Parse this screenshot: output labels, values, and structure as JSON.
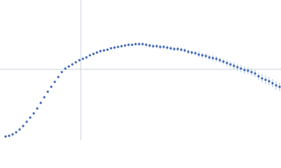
{
  "chart_data": {
    "type": "scatter",
    "xlim": [
      0,
      400
    ],
    "ylim": [
      0,
      200
    ],
    "vlines": [
      115
    ],
    "hlines": [
      101
    ],
    "line_color": "#c8d0dc",
    "error_color": "#a9bfe6",
    "x": [
      8,
      13,
      18,
      23,
      28,
      33,
      38,
      43,
      48,
      53,
      58,
      63,
      68,
      73,
      78,
      83,
      88,
      93,
      98,
      103,
      108,
      113,
      118,
      123,
      128,
      133,
      138,
      143,
      148,
      153,
      158,
      163,
      168,
      173,
      178,
      183,
      188,
      193,
      198,
      203,
      208,
      213,
      218,
      223,
      228,
      233,
      238,
      243,
      248,
      253,
      258,
      263,
      268,
      273,
      278,
      283,
      288,
      293,
      298,
      303,
      308,
      313,
      318,
      323,
      328,
      333,
      338,
      343,
      348,
      353,
      358,
      363,
      368,
      373,
      378,
      383,
      388,
      393,
      398
    ],
    "series": [
      {
        "color": "#3b64b5",
        "values": [
          5,
          6,
          8,
          11,
          15,
          20,
          26,
          32,
          38,
          45,
          53,
          61,
          69,
          76,
          83,
          90,
          97,
          102,
          105,
          108,
          111,
          114,
          116,
          118,
          121,
          123,
          125,
          127,
          128,
          129,
          131,
          132,
          133,
          134,
          135,
          136,
          136,
          137,
          137,
          137,
          136,
          135,
          134,
          134,
          133,
          133,
          132,
          131,
          130,
          130,
          129,
          128,
          126,
          125,
          124,
          122,
          121,
          120,
          118,
          117,
          116,
          114,
          112,
          110,
          108,
          106,
          104,
          102,
          100,
          99,
          97,
          95,
          91,
          88,
          86,
          84,
          81,
          78,
          76
        ],
        "errors": [
          0,
          0,
          0,
          0,
          0,
          0,
          0,
          0,
          0,
          0,
          1,
          1,
          1,
          1,
          1,
          1,
          1,
          1,
          1,
          1,
          1,
          1,
          1,
          1,
          1,
          2,
          2,
          2,
          2,
          2,
          2,
          2,
          2,
          2,
          2,
          2,
          2,
          2,
          2,
          2,
          3,
          3,
          3,
          3,
          3,
          3,
          3,
          3,
          3,
          3,
          3,
          3,
          3,
          3,
          3,
          4,
          4,
          4,
          4,
          4,
          4,
          4,
          4,
          4,
          4,
          5,
          5,
          5,
          5,
          5,
          5,
          5,
          5,
          6,
          6,
          6,
          6,
          6,
          6
        ]
      }
    ]
  }
}
